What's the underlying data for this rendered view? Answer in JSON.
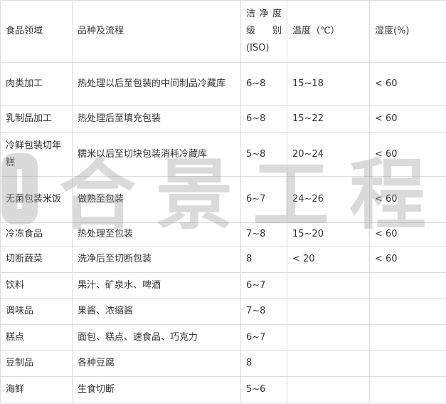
{
  "header": [
    "食品领域",
    "品种及流程",
    "洁净度级别(ISO)",
    "温度（℃）",
    "湿度(%)"
  ],
  "rows": [
    [
      "肉类加工",
      "热处理以后至包装的中间制品冷藏库",
      "6~8",
      "15~18",
      "< 60"
    ],
    [
      "乳制品加工",
      "热处理后至填充包装",
      "6~8",
      "15~22",
      "< 60"
    ],
    [
      "冷鲜包装切年糕",
      "糯米以后至切块包装消耗冷藏库",
      "5~8",
      "20~24",
      "< 60"
    ],
    [
      "无菌包装米饭",
      "做熟至包装",
      "6~7",
      "24~26",
      "< 60"
    ],
    [
      "冷冻食品",
      "热处理至包装",
      "7~8",
      "15~20",
      "< 60"
    ],
    [
      "切断蔬菜",
      "洗净后至切断包装",
      "8",
      "< 20",
      "< 60"
    ],
    [
      "饮料",
      "果汁、矿泉水、啤酒",
      "6~7",
      "",
      ""
    ],
    [
      "调味品",
      "果酱、浓缩酱",
      "7~8",
      "",
      ""
    ],
    [
      "糕点",
      "面包、糕点、速食品、巧克力",
      "6~7",
      "",
      ""
    ],
    [
      "豆制品",
      "各种豆腐",
      "8",
      "",
      ""
    ],
    [
      "海鲜",
      "生食切断",
      "5~6",
      "",
      ""
    ]
  ],
  "watermark": "合景工程"
}
